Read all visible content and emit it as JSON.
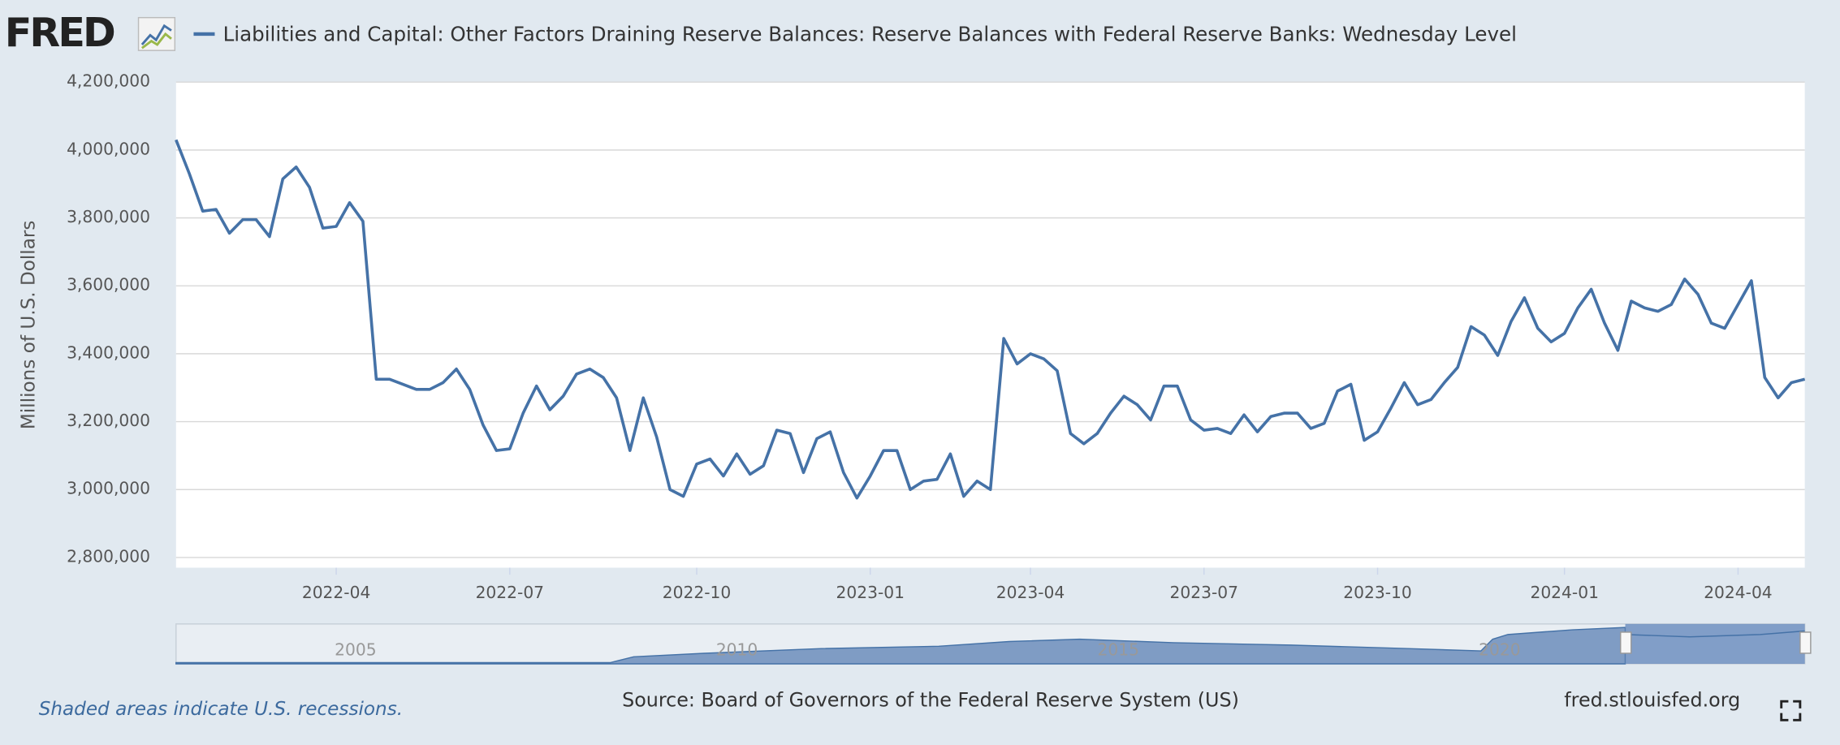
{
  "chart_data": {
    "type": "line",
    "logo": "FRED",
    "ylabel": "Millions of U.S. Dollars",
    "series": [
      {
        "name": "Liabilities and Capital: Other Factors Draining Reserve Balances: Reserve Balances with Federal Reserve Banks: Wednesday Level",
        "color": "#4572a7",
        "values": [
          4030000,
          3930000,
          3820000,
          3825000,
          3755000,
          3795000,
          3795000,
          3745000,
          3915000,
          3950000,
          3890000,
          3770000,
          3775000,
          3845000,
          3790000,
          3325000,
          3325000,
          3310000,
          3295000,
          3295000,
          3315000,
          3355000,
          3295000,
          3190000,
          3115000,
          3120000,
          3225000,
          3305000,
          3235000,
          3275000,
          3340000,
          3355000,
          3330000,
          3270000,
          3115000,
          3270000,
          3155000,
          3000000,
          2980000,
          3075000,
          3090000,
          3040000,
          3105000,
          3045000,
          3070000,
          3175000,
          3165000,
          3050000,
          3150000,
          3170000,
          3050000,
          2975000,
          3040000,
          3115000,
          3115000,
          3000000,
          3025000,
          3030000,
          3105000,
          2980000,
          3025000,
          3000000,
          3445000,
          3370000,
          3400000,
          3385000,
          3350000,
          3165000,
          3135000,
          3165000,
          3225000,
          3275000,
          3250000,
          3205000,
          3305000,
          3305000,
          3205000,
          3175000,
          3180000,
          3165000,
          3220000,
          3170000,
          3215000,
          3225000,
          3225000,
          3180000,
          3195000,
          3290000,
          3310000,
          3145000,
          3170000,
          3240000,
          3315000,
          3250000,
          3265000,
          3315000,
          3360000,
          3480000,
          3455000,
          3395000,
          3495000,
          3565000,
          3475000,
          3435000,
          3460000,
          3535000,
          3590000,
          3490000,
          3410000,
          3555000,
          3535000,
          3525000,
          3545000,
          3620000,
          3575000,
          3490000,
          3475000,
          3545000,
          3615000,
          3330000,
          3270000,
          3315000,
          3325000
        ]
      }
    ],
    "categories": [
      null,
      null,
      null,
      null,
      null,
      null,
      null,
      null,
      null,
      null,
      null,
      null,
      "2022-04",
      null,
      null,
      null,
      null,
      null,
      null,
      null,
      null,
      null,
      null,
      null,
      null,
      "2022-07",
      null,
      null,
      null,
      null,
      null,
      null,
      null,
      null,
      null,
      null,
      null,
      null,
      null,
      "2022-10",
      null,
      null,
      null,
      null,
      null,
      null,
      null,
      null,
      null,
      null,
      null,
      null,
      "2023-01",
      null,
      null,
      null,
      null,
      null,
      null,
      null,
      null,
      null,
      null,
      null,
      "2023-04",
      null,
      null,
      null,
      null,
      null,
      null,
      null,
      null,
      null,
      null,
      null,
      null,
      "2023-07",
      null,
      null,
      null,
      null,
      null,
      null,
      null,
      null,
      null,
      null,
      null,
      null,
      "2023-10",
      null,
      null,
      null,
      null,
      null,
      null,
      null,
      null,
      null,
      null,
      null,
      null,
      null,
      "2024-01",
      null,
      null,
      null,
      null,
      null,
      null,
      null,
      null,
      null,
      null,
      null,
      null,
      "2024-04",
      null,
      null,
      null,
      null,
      null
    ],
    "ylim": [
      2770000,
      4200000
    ],
    "yticks": [
      {
        "value": 2800000,
        "label": "2,800,000"
      },
      {
        "value": 3000000,
        "label": "3,000,000"
      },
      {
        "value": 3200000,
        "label": "3,200,000"
      },
      {
        "value": 3400000,
        "label": "3,400,000"
      },
      {
        "value": 3600000,
        "label": "3,600,000"
      },
      {
        "value": 3800000,
        "label": "3,800,000"
      },
      {
        "value": 4000000,
        "label": "4,000,000"
      },
      {
        "value": 4200000,
        "label": "4,200,000"
      }
    ],
    "grid": true,
    "navigator_labels": [
      "2005",
      "2010",
      "2015",
      "2020"
    ],
    "note": "Shaded areas indicate U.S. recessions.",
    "source": "Source: Board of Governors of the Federal Reserve System (US)",
    "site": "fred.stlouisfed.org"
  }
}
